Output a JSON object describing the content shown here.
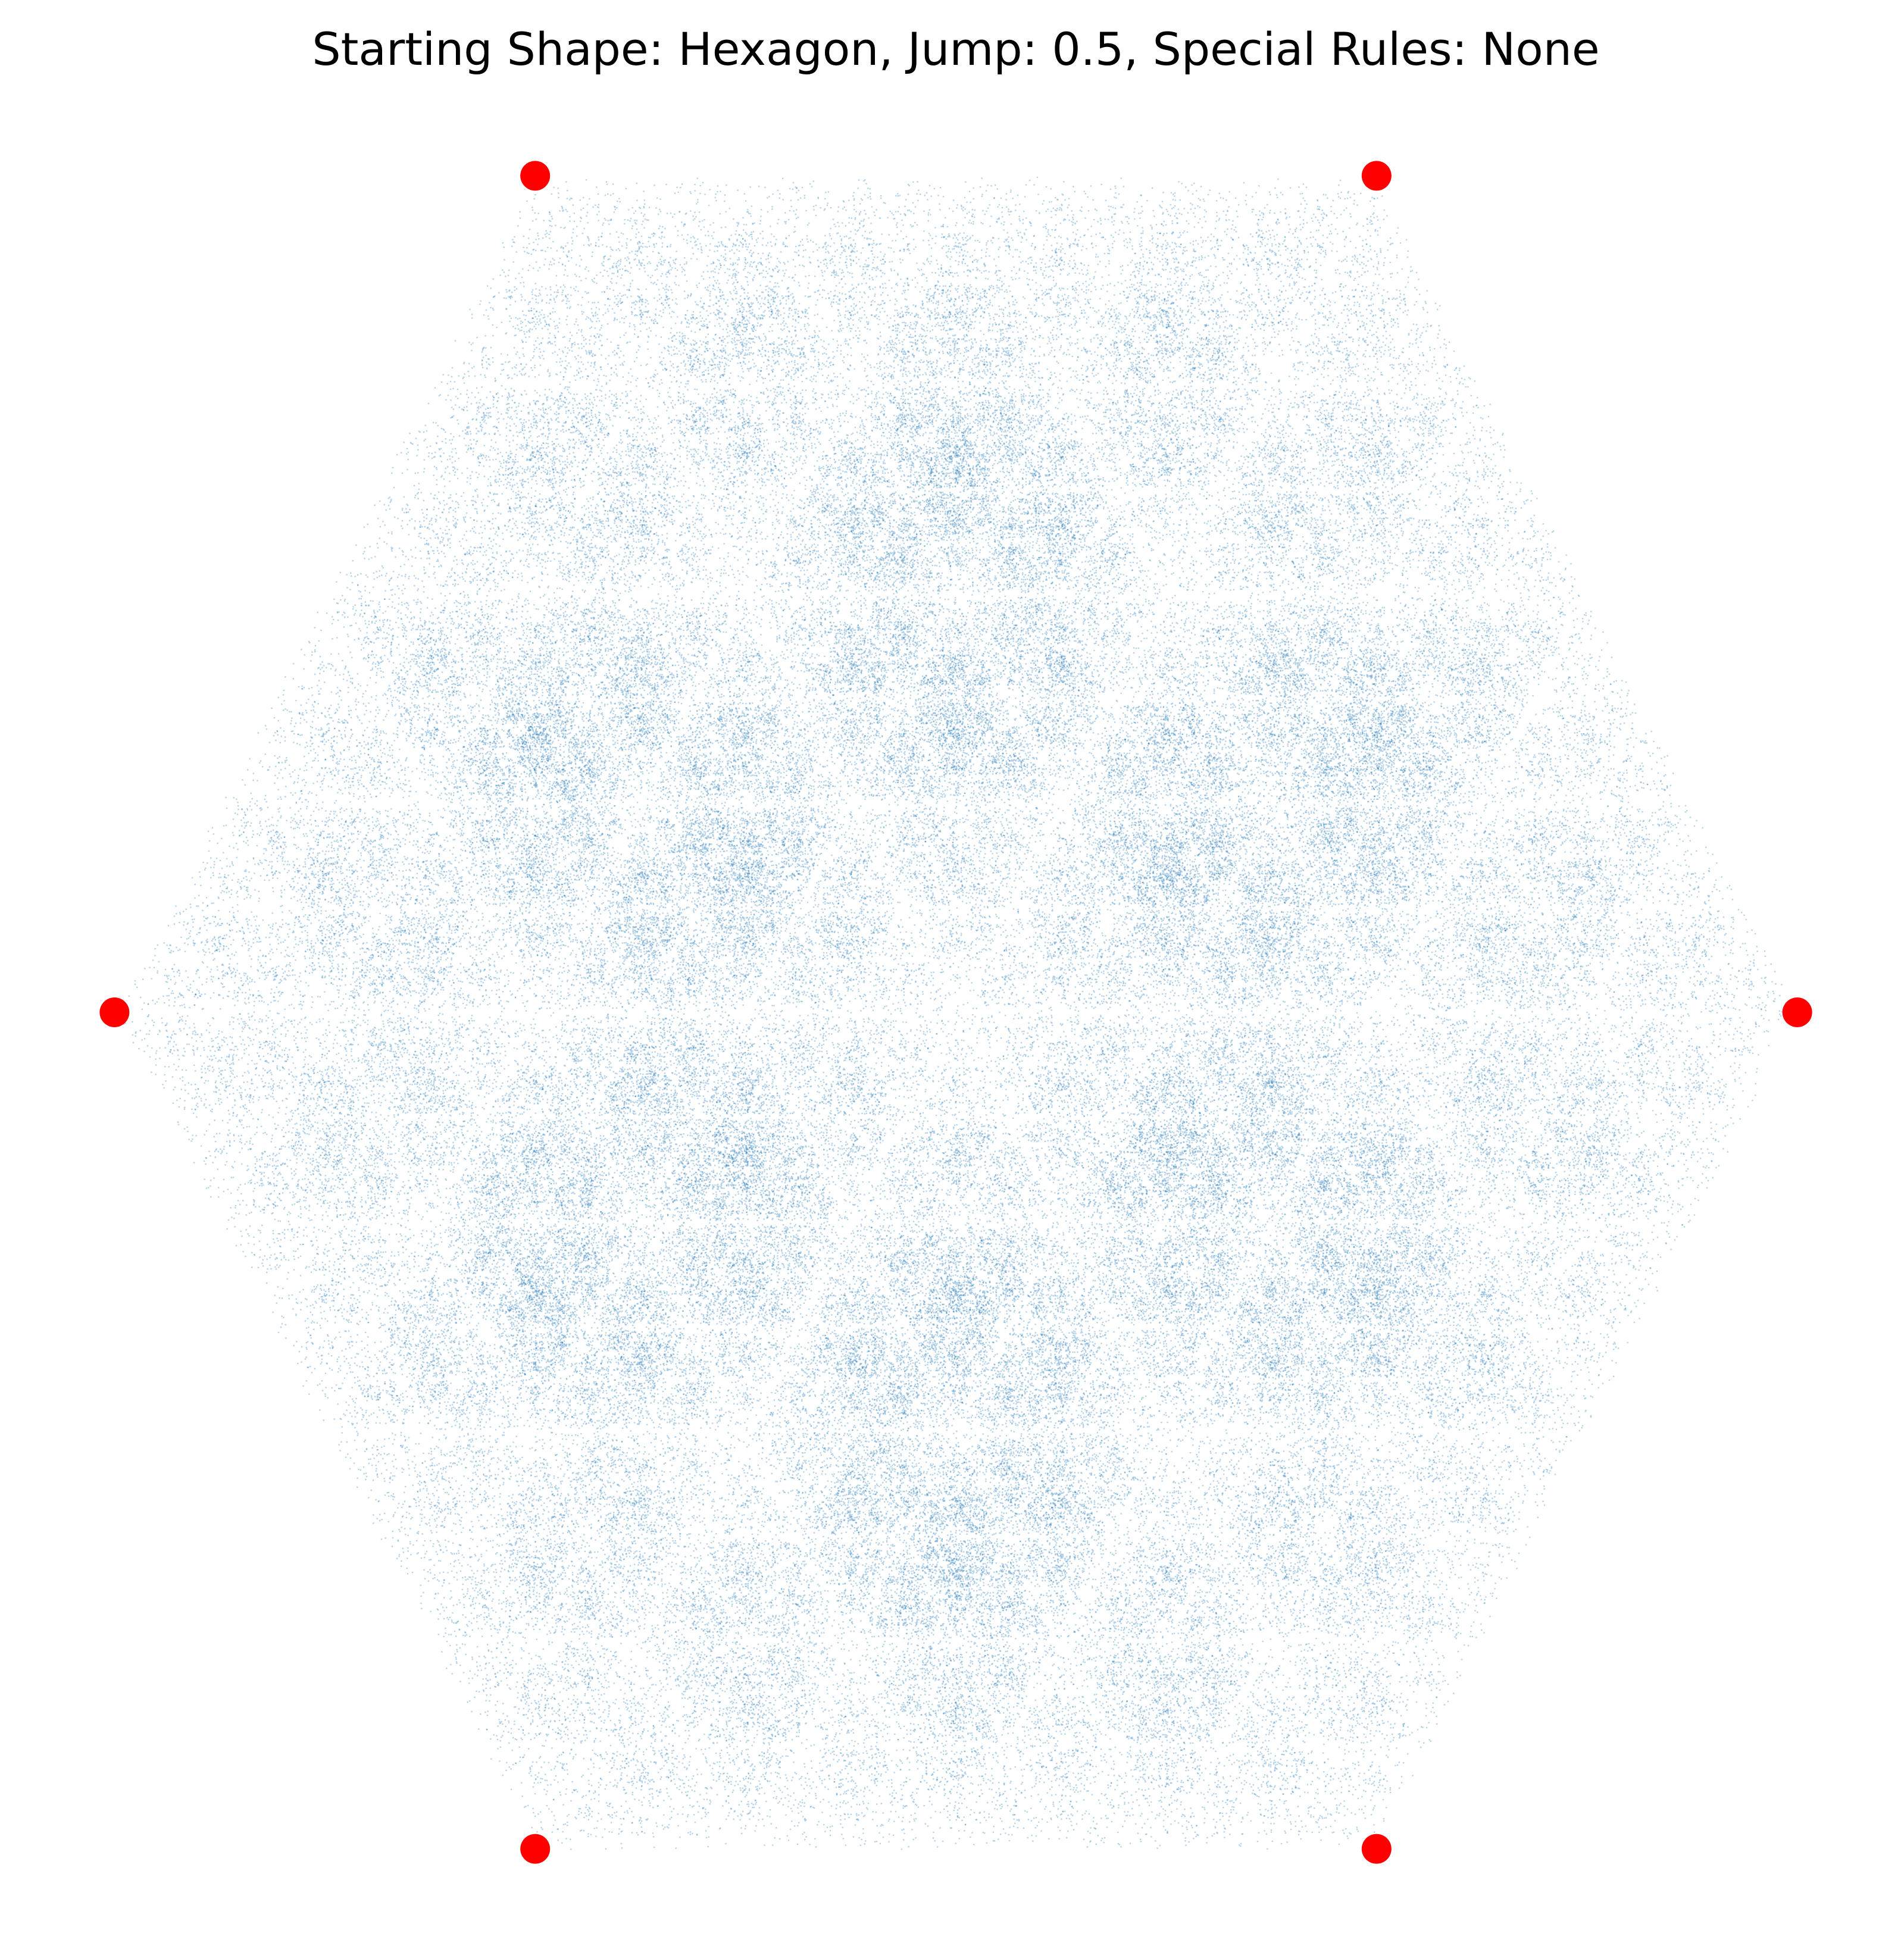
{
  "chart_data": {
    "type": "scatter",
    "title": "Starting Shape: Hexagon, Jump: 0.5, Special Rules: None",
    "series": [
      {
        "color": "#ff0000",
        "x": [
          1,
          0.5,
          -0.5,
          -1,
          -0.5,
          0.5
        ],
        "values": [
          0,
          0.866,
          0.866,
          0,
          -0.866,
          -0.866
        ]
      }
    ],
    "xlim": [
      -1.1,
      1.1
    ],
    "ylim": [
      -0.95,
      0.95
    ],
    "axis": false
  }
}
